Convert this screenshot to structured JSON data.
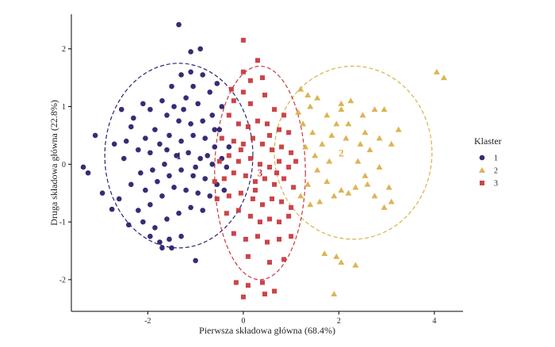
{
  "chart_data": {
    "type": "scatter",
    "xlabel": "Pierwsza składowa główna (68.4%)",
    "ylabel": "Druga składowa główna (22.8%)",
    "xlim": [
      -3.6,
      4.6
    ],
    "ylim": [
      -2.55,
      2.6
    ],
    "x_ticks": [
      -2,
      0,
      2,
      4
    ],
    "y_ticks": [
      -2,
      -1,
      0,
      1,
      2
    ],
    "x_tick_labels": [
      "-2",
      "0",
      "2",
      "4"
    ],
    "y_tick_labels": [
      "-2",
      "-1",
      "0",
      "1",
      "2"
    ],
    "legend": {
      "title": "Klaster",
      "position": "right"
    },
    "series": [
      {
        "name": "1",
        "marker": "circle",
        "color": "#2b216e",
        "points": [
          [
            -1.35,
            2.42
          ],
          [
            -0.9,
            2.0
          ],
          [
            -1.1,
            1.95
          ],
          [
            -3.1,
            0.5
          ],
          [
            -3.35,
            -0.05
          ],
          [
            -3.25,
            -0.15
          ],
          [
            -2.95,
            -0.5
          ],
          [
            -2.75,
            -0.78
          ],
          [
            -2.6,
            -0.6
          ],
          [
            -2.5,
            0.1
          ],
          [
            -2.7,
            0.35
          ],
          [
            -2.35,
            0.65
          ],
          [
            -2.55,
            0.95
          ],
          [
            -2.3,
            0.8
          ],
          [
            -2.1,
            1.05
          ],
          [
            -1.95,
            0.95
          ],
          [
            -1.7,
            1.1
          ],
          [
            -1.5,
            1.35
          ],
          [
            -1.3,
            1.55
          ],
          [
            -1.1,
            1.6
          ],
          [
            -0.85,
            1.55
          ],
          [
            -1.05,
            1.35
          ],
          [
            -1.2,
            1.15
          ],
          [
            -0.95,
            1.05
          ],
          [
            -0.7,
            1.25
          ],
          [
            -0.55,
            1.4
          ],
          [
            -0.45,
            1.0
          ],
          [
            -0.65,
            0.85
          ],
          [
            -0.85,
            0.75
          ],
          [
            -1.1,
            0.7
          ],
          [
            -1.35,
            0.75
          ],
          [
            -1.6,
            0.85
          ],
          [
            -1.85,
            0.6
          ],
          [
            -2.05,
            0.45
          ],
          [
            -2.2,
            0.25
          ],
          [
            -1.95,
            0.2
          ],
          [
            -1.75,
            0.35
          ],
          [
            -1.55,
            0.5
          ],
          [
            -1.3,
            0.4
          ],
          [
            -1.05,
            0.5
          ],
          [
            -0.8,
            0.45
          ],
          [
            -0.6,
            0.3
          ],
          [
            -0.45,
            0.1
          ],
          [
            -0.65,
            0.0
          ],
          [
            -0.9,
            0.1
          ],
          [
            -1.15,
            0.2
          ],
          [
            -1.4,
            0.15
          ],
          [
            -1.65,
            0.0
          ],
          [
            -1.9,
            -0.1
          ],
          [
            -2.15,
            -0.15
          ],
          [
            -2.35,
            -0.35
          ],
          [
            -2.05,
            -0.45
          ],
          [
            -1.8,
            -0.3
          ],
          [
            -1.55,
            -0.2
          ],
          [
            -1.3,
            -0.1
          ],
          [
            -1.05,
            -0.2
          ],
          [
            -0.8,
            -0.25
          ],
          [
            -0.55,
            -0.35
          ],
          [
            -0.7,
            -0.55
          ],
          [
            -0.95,
            -0.5
          ],
          [
            -1.2,
            -0.45
          ],
          [
            -1.45,
            -0.4
          ],
          [
            -1.7,
            -0.55
          ],
          [
            -1.95,
            -0.7
          ],
          [
            -2.2,
            -0.8
          ],
          [
            -2.4,
            -1.05
          ],
          [
            -2.1,
            -1.0
          ],
          [
            -1.85,
            -1.1
          ],
          [
            -1.6,
            -0.95
          ],
          [
            -1.35,
            -0.85
          ],
          [
            -1.1,
            -0.75
          ],
          [
            -0.85,
            -0.8
          ],
          [
            -1.55,
            -1.3
          ],
          [
            -1.3,
            -1.25
          ],
          [
            -1.75,
            -1.35
          ],
          [
            -1.95,
            -1.25
          ],
          [
            -1.5,
            -1.45
          ],
          [
            -1.7,
            -1.45
          ],
          [
            -1.0,
            -1.67
          ],
          [
            -0.35,
            -0.05
          ],
          [
            -0.3,
            0.3
          ],
          [
            -0.4,
            -0.45
          ],
          [
            -0.6,
            0.6
          ],
          [
            -1.25,
            0.95
          ],
          [
            -1.45,
            1.0
          ],
          [
            -2.45,
            0.4
          ],
          [
            -0.75,
            0.15
          ],
          [
            -0.5,
            0.6
          ],
          [
            -1.6,
            0.25
          ],
          [
            -1.0,
            -0.05
          ]
        ]
      },
      {
        "name": "2",
        "marker": "triangle",
        "color": "#dbb04a",
        "points": [
          [
            4.05,
            1.6
          ],
          [
            4.2,
            1.5
          ],
          [
            1.2,
            1.3
          ],
          [
            1.35,
            1.2
          ],
          [
            1.55,
            1.15
          ],
          [
            1.4,
            1.0
          ],
          [
            1.15,
            0.9
          ],
          [
            1.25,
            0.7
          ],
          [
            1.45,
            0.55
          ],
          [
            1.3,
            0.3
          ],
          [
            1.5,
            0.15
          ],
          [
            1.65,
            0.35
          ],
          [
            1.85,
            0.5
          ],
          [
            1.75,
            0.85
          ],
          [
            2.05,
            1.05
          ],
          [
            2.25,
            1.1
          ],
          [
            2.5,
            0.85
          ],
          [
            2.75,
            0.95
          ],
          [
            2.95,
            0.95
          ],
          [
            3.25,
            0.6
          ],
          [
            3.1,
            0.35
          ],
          [
            2.85,
            0.45
          ],
          [
            2.65,
            0.25
          ],
          [
            2.45,
            0.35
          ],
          [
            2.2,
            0.7
          ],
          [
            1.95,
            0.7
          ],
          [
            2.05,
            0.95
          ],
          [
            2.55,
            0.55
          ],
          [
            2.85,
            -0.05
          ],
          [
            2.55,
            -0.2
          ],
          [
            2.35,
            -0.4
          ],
          [
            2.05,
            -0.45
          ],
          [
            1.75,
            -0.3
          ],
          [
            1.55,
            -0.1
          ],
          [
            1.35,
            -0.35
          ],
          [
            1.2,
            -0.55
          ],
          [
            1.4,
            -0.7
          ],
          [
            1.6,
            -0.65
          ],
          [
            1.9,
            -0.55
          ],
          [
            2.2,
            -0.5
          ],
          [
            2.75,
            -0.55
          ],
          [
            3.05,
            -0.4
          ],
          [
            3.1,
            -0.65
          ],
          [
            2.95,
            -0.75
          ],
          [
            1.7,
            -1.55
          ],
          [
            1.95,
            -1.6
          ],
          [
            2.05,
            -1.7
          ],
          [
            2.35,
            -1.75
          ],
          [
            1.9,
            -2.25
          ],
          [
            2.6,
            -0.35
          ],
          [
            1.8,
            0.05
          ],
          [
            2.15,
            0.45
          ],
          [
            2.4,
            0.05
          ]
        ]
      },
      {
        "name": "3",
        "marker": "square",
        "color": "#c83a3e",
        "points": [
          [
            0.0,
            2.15
          ],
          [
            0.3,
            1.8
          ],
          [
            0.15,
            1.45
          ],
          [
            0.0,
            1.6
          ],
          [
            0.4,
            1.5
          ],
          [
            -0.25,
            1.3
          ],
          [
            -0.2,
            1.1
          ],
          [
            0.0,
            1.25
          ],
          [
            0.15,
            1.05
          ],
          [
            0.45,
            1.2
          ],
          [
            0.65,
            0.95
          ],
          [
            0.85,
            0.85
          ],
          [
            -0.3,
            0.85
          ],
          [
            -0.1,
            0.7
          ],
          [
            0.1,
            0.65
          ],
          [
            0.3,
            0.75
          ],
          [
            0.5,
            0.7
          ],
          [
            0.75,
            0.6
          ],
          [
            0.95,
            0.55
          ],
          [
            -0.45,
            0.45
          ],
          [
            -0.2,
            0.4
          ],
          [
            0.0,
            0.35
          ],
          [
            0.2,
            0.45
          ],
          [
            0.4,
            0.35
          ],
          [
            0.6,
            0.25
          ],
          [
            0.8,
            0.3
          ],
          [
            1.0,
            0.2
          ],
          [
            -0.5,
            0.05
          ],
          [
            -0.3,
            0.15
          ],
          [
            -0.1,
            0.05
          ],
          [
            0.15,
            0.1
          ],
          [
            0.35,
            0.0
          ],
          [
            0.55,
            -0.05
          ],
          [
            0.75,
            0.05
          ],
          [
            0.95,
            -0.05
          ],
          [
            -0.6,
            -0.3
          ],
          [
            -0.4,
            -0.25
          ],
          [
            -0.2,
            -0.15
          ],
          [
            0.05,
            -0.2
          ],
          [
            0.25,
            -0.3
          ],
          [
            0.45,
            -0.25
          ],
          [
            0.65,
            -0.35
          ],
          [
            0.85,
            -0.25
          ],
          [
            1.05,
            -0.4
          ],
          [
            -0.55,
            -0.6
          ],
          [
            -0.3,
            -0.55
          ],
          [
            -0.05,
            -0.5
          ],
          [
            0.2,
            -0.6
          ],
          [
            0.4,
            -0.7
          ],
          [
            0.6,
            -0.6
          ],
          [
            0.8,
            -0.65
          ],
          [
            1.0,
            -0.75
          ],
          [
            -0.35,
            -0.85
          ],
          [
            -0.1,
            -0.8
          ],
          [
            0.15,
            -0.9
          ],
          [
            0.35,
            -1.0
          ],
          [
            0.55,
            -0.95
          ],
          [
            0.75,
            -1.0
          ],
          [
            0.95,
            -0.9
          ],
          [
            -0.2,
            -1.2
          ],
          [
            0.05,
            -1.3
          ],
          [
            0.3,
            -1.25
          ],
          [
            0.5,
            -1.35
          ],
          [
            0.75,
            -1.3
          ],
          [
            1.0,
            -1.25
          ],
          [
            0.1,
            -1.6
          ],
          [
            0.55,
            -1.7
          ],
          [
            0.85,
            -1.65
          ],
          [
            -0.15,
            -2.05
          ],
          [
            0.1,
            -2.1
          ],
          [
            0.4,
            -2.05
          ],
          [
            0.65,
            -2.2
          ],
          [
            0.0,
            -2.3
          ],
          [
            0.45,
            -2.25
          ],
          [
            0.25,
            -0.45
          ],
          [
            -0.05,
            0.25
          ],
          [
            0.55,
            0.5
          ],
          [
            1.1,
            0.05
          ],
          [
            0.7,
            -0.15
          ]
        ]
      }
    ],
    "ellipses": [
      {
        "cluster": "1",
        "cx": -1.35,
        "cy": 0.15,
        "rx": 1.55,
        "ry": 1.6,
        "color": "#2b216e"
      },
      {
        "cluster": "2",
        "cx": 2.3,
        "cy": 0.2,
        "rx": 1.65,
        "ry": 1.5,
        "color": "#dbb04a"
      },
      {
        "cluster": "3",
        "cx": 0.35,
        "cy": -0.15,
        "rx": 0.95,
        "ry": 1.85,
        "color": "#c83a3e"
      }
    ],
    "center_labels": [
      {
        "cluster": "1",
        "text": "1",
        "x": -1.35,
        "y": 0.15
      },
      {
        "cluster": "2",
        "text": "2",
        "x": 2.05,
        "y": 0.2
      },
      {
        "cluster": "3",
        "text": "3",
        "x": 0.35,
        "y": -0.15
      }
    ]
  }
}
